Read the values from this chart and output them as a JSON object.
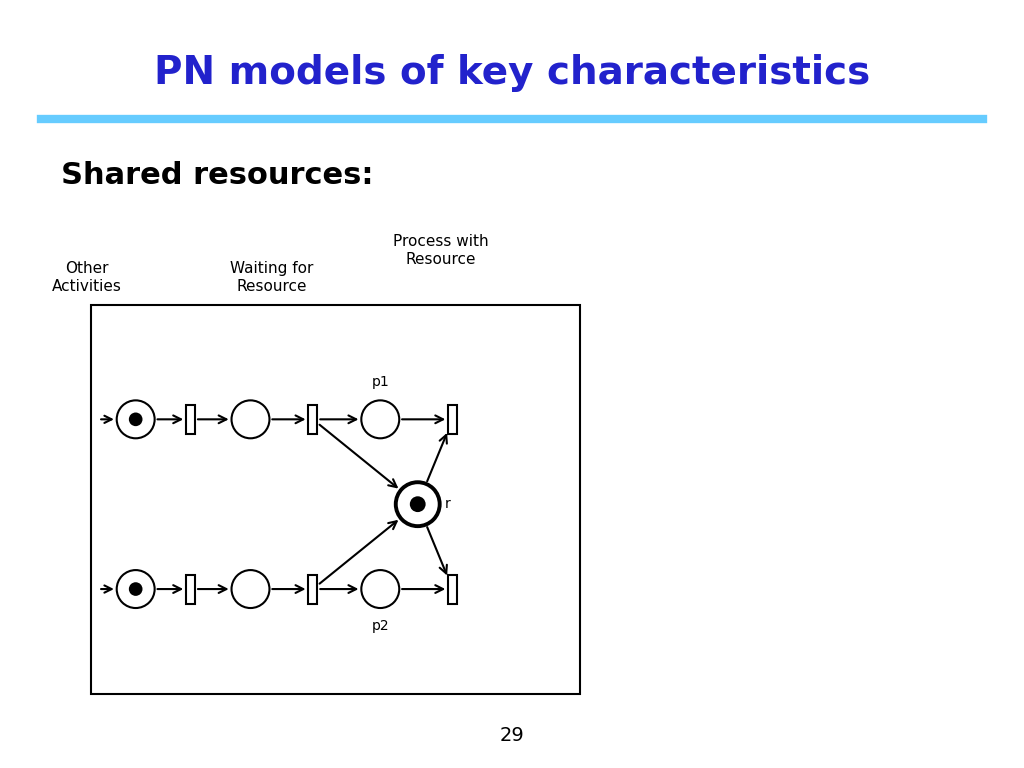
{
  "title": "PN models of key characteristics",
  "title_color": "#2222CC",
  "title_fontsize": 28,
  "subtitle": "Shared resources",
  "subtitle_fontsize": 22,
  "separator_color": "#66CCFF",
  "background_color": "#FFFFFF",
  "page_number": "29",
  "label_other_activities": "Other\nActivities",
  "label_waiting_for": "Waiting for\nResource",
  "label_process_with": "Process with\nResource",
  "label_p1": "p1",
  "label_p2": "p2",
  "label_r": "r"
}
